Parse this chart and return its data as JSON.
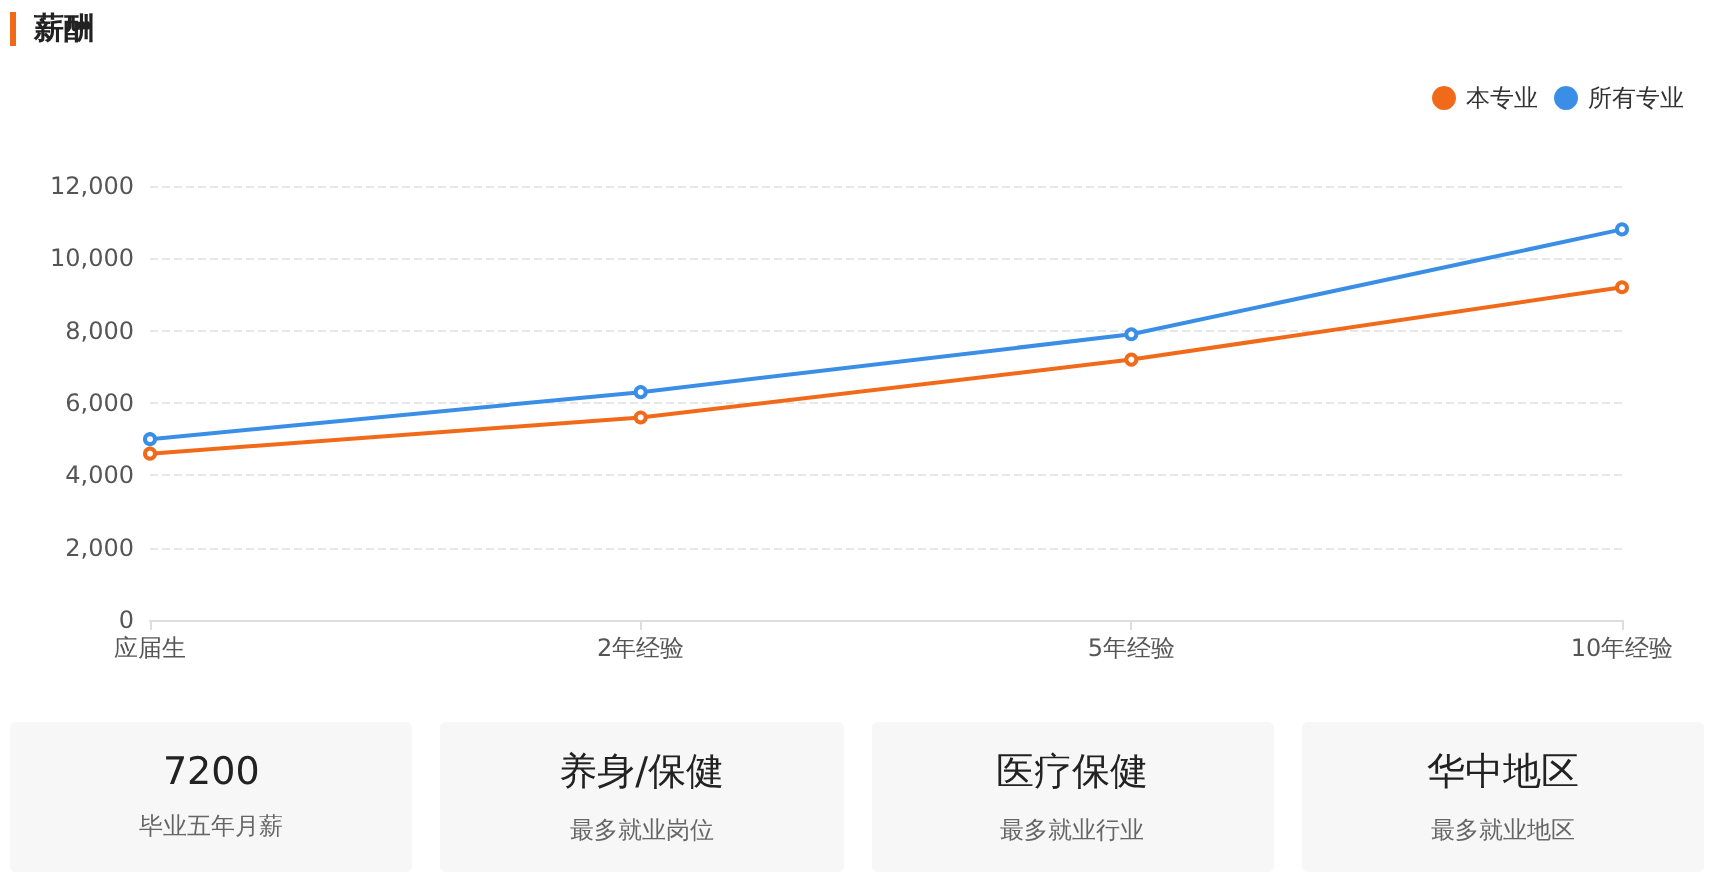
{
  "chart_data": [
    {
      "type": "line",
      "title": "薪酬",
      "categories": [
        "应届生",
        "2年经验",
        "5年经验",
        "10年经验"
      ],
      "series": [
        {
          "name": "本专业",
          "color": "#f06a1a",
          "values": [
            4600,
            5600,
            7200,
            9200
          ]
        },
        {
          "name": "所有专业",
          "color": "#3a8ee6",
          "values": [
            5000,
            6300,
            7900,
            10800
          ]
        }
      ],
      "ylim": [
        0,
        12000
      ],
      "yticks": [
        0,
        {
          "value": 2000,
          "label": "2,000"
        },
        {
          "value": 4000,
          "label": "4,000"
        },
        {
          "value": 6000,
          "label": "6,000"
        },
        {
          "value": 8000,
          "label": "8,000"
        },
        {
          "value": 10000,
          "label": "10,000"
        },
        {
          "value": 12000,
          "label": "12,000"
        }
      ],
      "grid": "y",
      "legend": "top right",
      "marker": "circle",
      "line_style": "solid"
    },
    {
      "type": "other",
      "annotations": [
        "7200",
        "毕业五年月薪",
        "养身/保健",
        "最多就业岗位",
        "医疗保健",
        "最多就业行业",
        "华中地区",
        "最多就业地区"
      ]
    }
  ]
}
